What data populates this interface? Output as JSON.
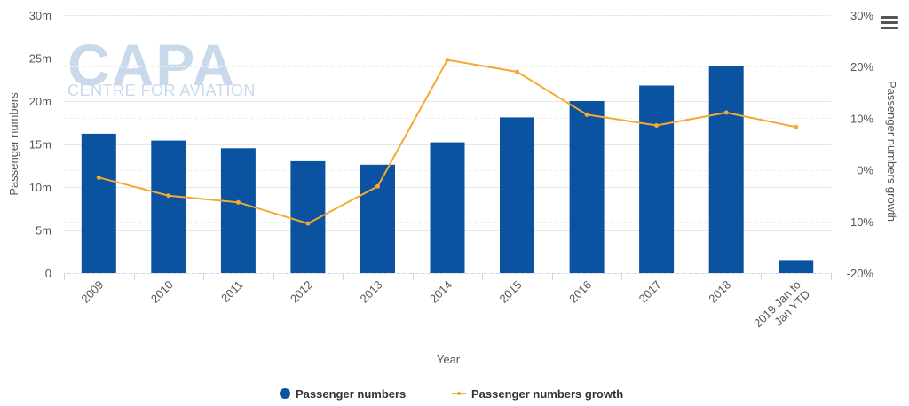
{
  "watermark": {
    "brand": "CAPA",
    "tagline": "CENTRE FOR AVIATION"
  },
  "menu_icon": "hamburger-menu-icon",
  "chart_data": {
    "type": "bar",
    "categories": [
      "2009",
      "2010",
      "2011",
      "2012",
      "2013",
      "2014",
      "2015",
      "2016",
      "2017",
      "2018",
      "2019 Jan to Jan YTD"
    ],
    "series": [
      {
        "name": "Passenger numbers",
        "type": "bar",
        "axis": "left",
        "color": "#0b52a1",
        "values": [
          16.2,
          15.4,
          14.5,
          13.0,
          12.6,
          15.2,
          18.1,
          20.0,
          21.8,
          24.1,
          1.5
        ]
      },
      {
        "name": "Passenger numbers growth",
        "type": "line",
        "axis": "right",
        "color": "#f5a833",
        "values": [
          -1.5,
          -5.0,
          -6.3,
          -10.4,
          -3.2,
          21.3,
          19.0,
          10.7,
          8.6,
          11.1,
          8.3
        ]
      }
    ],
    "xlabel": "Year",
    "ylabel": "Passenger numbers",
    "y2label": "Passenger numbers growth",
    "ylim": [
      0,
      30
    ],
    "y2lim": [
      -20,
      30
    ],
    "yticks": [
      "0",
      "5m",
      "10m",
      "15m",
      "20m",
      "25m",
      "30m"
    ],
    "y2ticks": [
      "-20%",
      "-10%",
      "0%",
      "10%",
      "20%",
      "30%"
    ],
    "grid": true,
    "legend_position": "bottom-center"
  }
}
